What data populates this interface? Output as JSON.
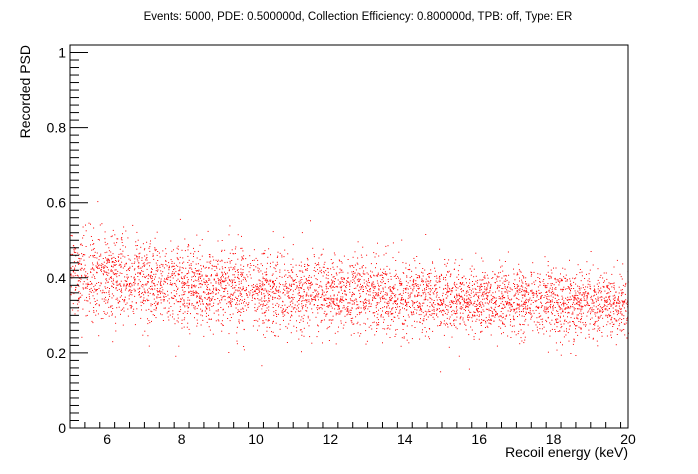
{
  "chart_data": {
    "type": "scatter",
    "title": "Events: 5000, PDE: 0.500000d, Collection Efficiency: 0.800000d, TPB: off, Type: ER",
    "xlabel": "Recoil energy (keV)",
    "ylabel": "Recorded PSD",
    "xlim": [
      5,
      20
    ],
    "ylim": [
      0,
      1.02
    ],
    "x_ticks": [
      6,
      8,
      10,
      12,
      14,
      16,
      18,
      20
    ],
    "y_ticks": [
      0,
      0.2,
      0.4,
      0.6,
      0.8,
      1
    ],
    "x_tick_labels": [
      "6",
      "8",
      "10",
      "12",
      "14",
      "16",
      "18",
      "20"
    ],
    "y_tick_labels": [
      "0",
      "0.2",
      "0.4",
      "0.6",
      "0.8",
      "1"
    ],
    "marker_color": "#ff0000",
    "n_points": 5000,
    "trend": [
      {
        "x": 5,
        "y_mean": 0.41,
        "y_spread": 0.06
      },
      {
        "x": 8,
        "y_mean": 0.38,
        "y_spread": 0.055
      },
      {
        "x": 12,
        "y_mean": 0.36,
        "y_spread": 0.05
      },
      {
        "x": 16,
        "y_mean": 0.34,
        "y_spread": 0.045
      },
      {
        "x": 20,
        "y_mean": 0.33,
        "y_spread": 0.042
      }
    ],
    "grid": false,
    "legend": false
  }
}
